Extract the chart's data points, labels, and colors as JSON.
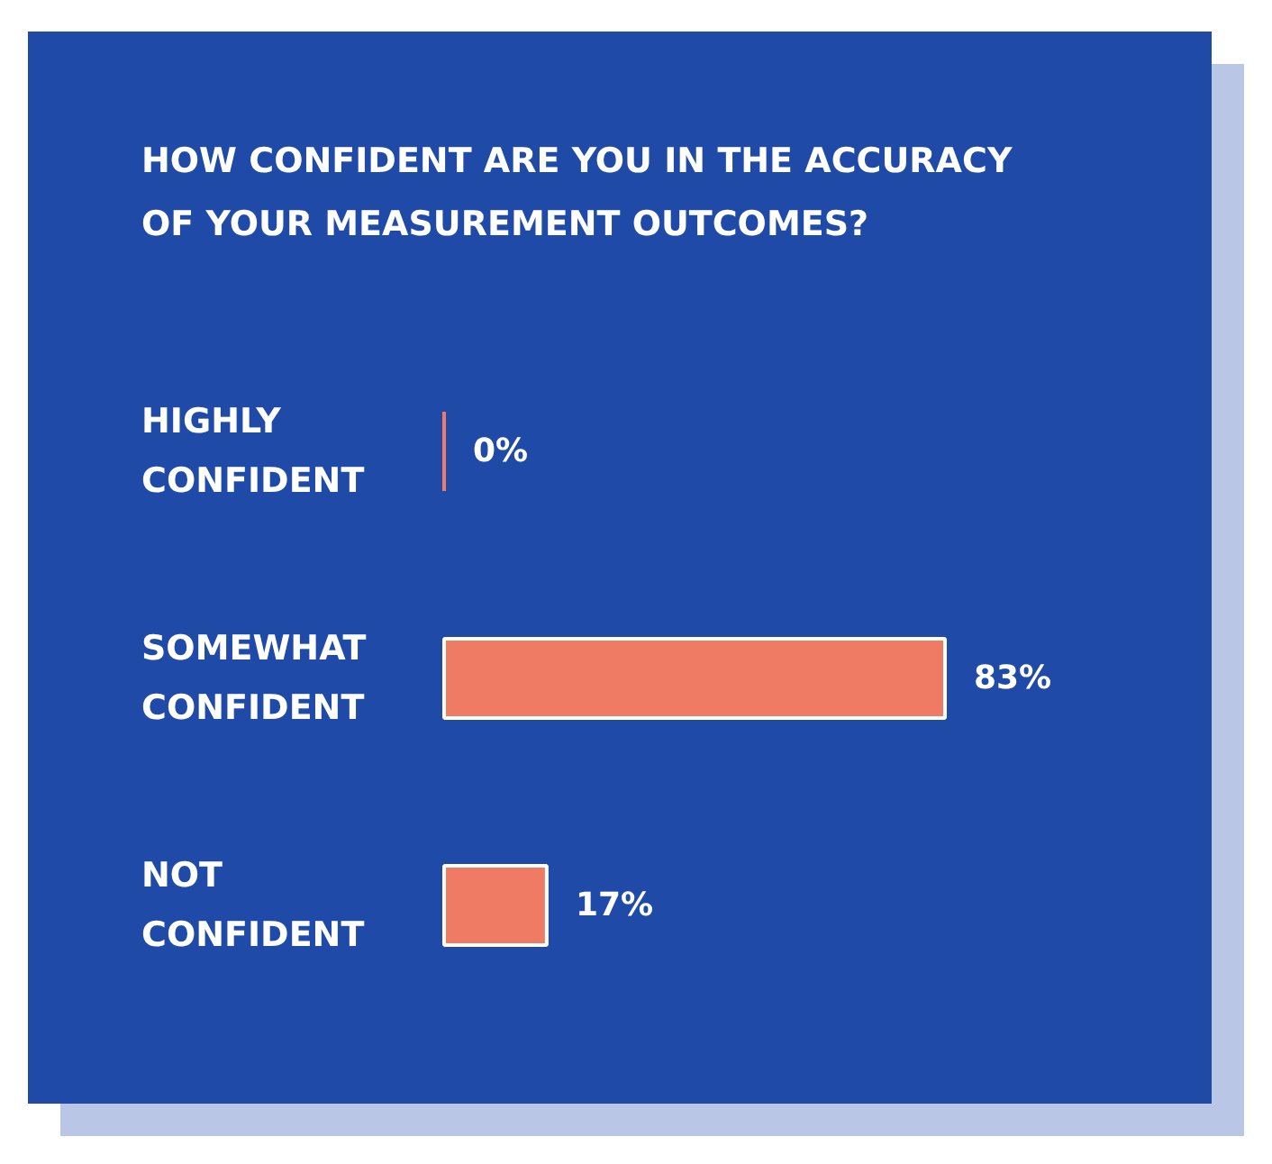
{
  "chart_data": {
    "type": "bar",
    "orientation": "horizontal",
    "title": "HOW CONFIDENT ARE YOU IN THE ACCURACY OF YOUR MEASUREMENT OUTCOMES?",
    "categories": [
      "HIGHLY CONFIDENT",
      "SOMEWHAT CONFIDENT",
      "NOT CONFIDENT"
    ],
    "values": [
      0,
      83,
      17
    ],
    "value_labels": [
      "0%",
      "83%",
      "17%"
    ],
    "color": "#ef7b65"
  }
}
